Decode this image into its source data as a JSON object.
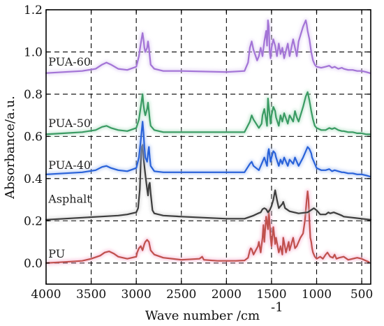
{
  "chart_data": {
    "type": "line",
    "xlabel": "Wave number /cm",
    "xlabel_superscript": "-1",
    "ylabel": "Absorbance/a.u.",
    "xlim": [
      4000,
      400
    ],
    "ylim": [
      -0.1,
      1.2
    ],
    "x_ticks": [
      4000,
      3500,
      3000,
      2500,
      2000,
      1500,
      1000,
      500
    ],
    "x_tick_labels": [
      "4000",
      "3500",
      "3000",
      "2500",
      "2000",
      "1500",
      "1000",
      "500"
    ],
    "y_ticks": [
      0.0,
      0.2,
      0.4,
      0.6,
      0.8,
      1.0,
      1.2
    ],
    "y_tick_labels": [
      "0.0",
      "0.2",
      "0.4",
      "0.6",
      "0.8",
      "1.0",
      "1.2"
    ],
    "grid": "dashed",
    "series": [
      {
        "name": "PU",
        "color": "#c0504d",
        "glow": "#f4a6c8",
        "label_at": {
          "x": 3990,
          "y": 0.025
        },
        "x": [
          4000,
          3800,
          3600,
          3500,
          3400,
          3350,
          3300,
          3250,
          3200,
          3100,
          3000,
          2990,
          2970,
          2950,
          2930,
          2910,
          2900,
          2880,
          2860,
          2840,
          2800,
          2700,
          2500,
          2300,
          2270,
          2250,
          2100,
          2000,
          1900,
          1800,
          1760,
          1740,
          1730,
          1720,
          1700,
          1650,
          1640,
          1620,
          1600,
          1590,
          1580,
          1560,
          1540,
          1530,
          1510,
          1500,
          1480,
          1460,
          1450,
          1420,
          1400,
          1380,
          1370,
          1340,
          1310,
          1300,
          1260,
          1240,
          1220,
          1200,
          1180,
          1150,
          1130,
          1110,
          1100,
          1090,
          1080,
          1070,
          1060,
          1050,
          1040,
          1020,
          1000,
          960,
          930,
          900,
          880,
          850,
          820,
          800,
          780,
          750,
          700,
          650,
          600,
          550,
          500,
          450,
          420
        ],
        "y": [
          0.0,
          0.005,
          0.01,
          0.02,
          0.035,
          0.05,
          0.055,
          0.045,
          0.03,
          0.02,
          0.03,
          0.05,
          0.07,
          0.08,
          0.06,
          0.09,
          0.1,
          0.11,
          0.1,
          0.06,
          0.04,
          0.025,
          0.015,
          0.02,
          0.03,
          0.015,
          0.01,
          0.01,
          0.01,
          0.012,
          0.025,
          0.06,
          0.07,
          0.065,
          0.04,
          0.08,
          0.1,
          0.05,
          0.12,
          0.18,
          0.1,
          0.22,
          0.16,
          0.25,
          0.12,
          0.08,
          0.17,
          0.09,
          0.12,
          0.05,
          0.08,
          0.04,
          0.12,
          0.05,
          0.1,
          0.06,
          0.12,
          0.07,
          0.08,
          0.1,
          0.12,
          0.14,
          0.2,
          0.3,
          0.34,
          0.3,
          0.2,
          0.12,
          0.1,
          0.07,
          0.05,
          0.03,
          0.02,
          0.03,
          0.02,
          0.04,
          0.05,
          0.03,
          0.025,
          0.04,
          0.02,
          0.025,
          0.03,
          0.015,
          0.02,
          0.025,
          0.02,
          0.01,
          0.005
        ]
      },
      {
        "name": "Asphalt",
        "color": "#3d3d3d",
        "glow": "#c8c8c8",
        "label_at": {
          "x": 3990,
          "y": 0.285
        },
        "x": [
          4000,
          3800,
          3600,
          3400,
          3200,
          3100,
          3050,
          3000,
          2980,
          2960,
          2950,
          2940,
          2930,
          2920,
          2900,
          2880,
          2870,
          2860,
          2850,
          2840,
          2820,
          2800,
          2700,
          2500,
          2000,
          1800,
          1700,
          1650,
          1620,
          1600,
          1580,
          1560,
          1540,
          1520,
          1500,
          1480,
          1460,
          1440,
          1420,
          1400,
          1380,
          1370,
          1350,
          1300,
          1250,
          1200,
          1100,
          1030,
          1000,
          960,
          900,
          870,
          850,
          810,
          780,
          750,
          720,
          700,
          600,
          500,
          400
        ],
        "y": [
          0.205,
          0.21,
          0.215,
          0.22,
          0.225,
          0.23,
          0.235,
          0.24,
          0.26,
          0.35,
          0.48,
          0.55,
          0.56,
          0.5,
          0.42,
          0.35,
          0.32,
          0.37,
          0.38,
          0.33,
          0.25,
          0.235,
          0.225,
          0.22,
          0.21,
          0.21,
          0.225,
          0.235,
          0.24,
          0.255,
          0.26,
          0.255,
          0.24,
          0.25,
          0.27,
          0.3,
          0.345,
          0.3,
          0.26,
          0.27,
          0.28,
          0.29,
          0.26,
          0.245,
          0.24,
          0.235,
          0.24,
          0.26,
          0.25,
          0.23,
          0.23,
          0.24,
          0.235,
          0.24,
          0.235,
          0.23,
          0.225,
          0.22,
          0.215,
          0.21,
          0.205
        ]
      },
      {
        "name": "PUA-40",
        "color": "#2962d9",
        "glow": "#9cb8f0",
        "label_at": {
          "x": 3990,
          "y": 0.445
        },
        "x": [
          4000,
          3800,
          3600,
          3450,
          3380,
          3330,
          3280,
          3200,
          3100,
          3000,
          2970,
          2950,
          2930,
          2920,
          2910,
          2900,
          2880,
          2870,
          2860,
          2850,
          2840,
          2800,
          2700,
          2500,
          2000,
          1800,
          1740,
          1720,
          1700,
          1640,
          1600,
          1580,
          1550,
          1540,
          1530,
          1510,
          1500,
          1480,
          1460,
          1450,
          1420,
          1400,
          1380,
          1360,
          1320,
          1300,
          1260,
          1240,
          1220,
          1200,
          1150,
          1120,
          1100,
          1080,
          1060,
          1050,
          1020,
          1000,
          950,
          900,
          860,
          830,
          800,
          760,
          720,
          700,
          650,
          600,
          550,
          500,
          450,
          410
        ],
        "y": [
          0.42,
          0.425,
          0.43,
          0.44,
          0.455,
          0.46,
          0.45,
          0.44,
          0.435,
          0.45,
          0.5,
          0.58,
          0.67,
          0.62,
          0.55,
          0.5,
          0.48,
          0.52,
          0.55,
          0.5,
          0.46,
          0.435,
          0.43,
          0.43,
          0.43,
          0.43,
          0.47,
          0.48,
          0.46,
          0.44,
          0.48,
          0.5,
          0.46,
          0.52,
          0.54,
          0.48,
          0.5,
          0.53,
          0.52,
          0.5,
          0.46,
          0.49,
          0.47,
          0.5,
          0.46,
          0.49,
          0.47,
          0.5,
          0.48,
          0.46,
          0.5,
          0.53,
          0.55,
          0.54,
          0.52,
          0.5,
          0.47,
          0.45,
          0.44,
          0.44,
          0.445,
          0.435,
          0.44,
          0.435,
          0.43,
          0.43,
          0.425,
          0.425,
          0.42,
          0.42,
          0.415,
          0.41
        ]
      },
      {
        "name": "PUA-50",
        "color": "#3a9b63",
        "glow": "#a6dbbb",
        "label_at": {
          "x": 3990,
          "y": 0.645
        },
        "x": [
          4000,
          3800,
          3600,
          3450,
          3380,
          3330,
          3280,
          3200,
          3100,
          3000,
          2970,
          2950,
          2930,
          2920,
          2910,
          2900,
          2880,
          2870,
          2860,
          2850,
          2840,
          2800,
          2700,
          2500,
          2000,
          1800,
          1740,
          1720,
          1700,
          1640,
          1610,
          1600,
          1580,
          1550,
          1540,
          1530,
          1510,
          1500,
          1480,
          1460,
          1450,
          1420,
          1400,
          1380,
          1360,
          1320,
          1300,
          1260,
          1240,
          1220,
          1200,
          1150,
          1120,
          1100,
          1080,
          1060,
          1040,
          1020,
          1000,
          950,
          900,
          860,
          830,
          800,
          760,
          720,
          700,
          650,
          600,
          550,
          500,
          450,
          410
        ],
        "y": [
          0.61,
          0.615,
          0.62,
          0.63,
          0.645,
          0.65,
          0.64,
          0.63,
          0.625,
          0.64,
          0.68,
          0.74,
          0.8,
          0.75,
          0.72,
          0.7,
          0.73,
          0.76,
          0.72,
          0.68,
          0.65,
          0.63,
          0.62,
          0.62,
          0.62,
          0.62,
          0.67,
          0.7,
          0.68,
          0.64,
          0.66,
          0.7,
          0.73,
          0.65,
          0.78,
          0.74,
          0.66,
          0.7,
          0.74,
          0.72,
          0.69,
          0.65,
          0.7,
          0.67,
          0.71,
          0.66,
          0.7,
          0.67,
          0.72,
          0.69,
          0.67,
          0.74,
          0.79,
          0.81,
          0.77,
          0.72,
          0.68,
          0.65,
          0.64,
          0.63,
          0.63,
          0.64,
          0.635,
          0.64,
          0.63,
          0.625,
          0.625,
          0.62,
          0.62,
          0.615,
          0.615,
          0.61,
          0.61
        ]
      },
      {
        "name": "PUA-60",
        "color": "#a374d6",
        "glow": "#d7c2f0",
        "label_at": {
          "x": 3990,
          "y": 0.935
        },
        "x": [
          4000,
          3800,
          3600,
          3450,
          3380,
          3330,
          3280,
          3200,
          3100,
          3000,
          2970,
          2950,
          2930,
          2920,
          2910,
          2900,
          2880,
          2870,
          2860,
          2850,
          2840,
          2800,
          2700,
          2500,
          2000,
          1800,
          1760,
          1740,
          1720,
          1700,
          1660,
          1640,
          1620,
          1600,
          1580,
          1560,
          1550,
          1540,
          1530,
          1520,
          1510,
          1500,
          1480,
          1460,
          1440,
          1420,
          1400,
          1380,
          1360,
          1320,
          1300,
          1260,
          1240,
          1220,
          1200,
          1150,
          1120,
          1110,
          1100,
          1080,
          1060,
          1040,
          1020,
          1000,
          950,
          900,
          860,
          830,
          800,
          760,
          720,
          700,
          650,
          600,
          550,
          500,
          450,
          410
        ],
        "y": [
          0.9,
          0.905,
          0.91,
          0.92,
          0.94,
          0.95,
          0.94,
          0.92,
          0.915,
          0.93,
          0.98,
          1.04,
          1.09,
          1.06,
          1.02,
          1.0,
          1.02,
          1.05,
          1.02,
          0.98,
          0.94,
          0.92,
          0.91,
          0.91,
          0.905,
          0.91,
          0.95,
          1.02,
          1.05,
          1.01,
          0.96,
          0.98,
          1.02,
          0.98,
          1.05,
          1.1,
          1.03,
          1.15,
          1.12,
          1.0,
          0.97,
          1.02,
          1.06,
          1.03,
          0.98,
          1.04,
          0.99,
          1.02,
          0.97,
          1.04,
          0.98,
          1.06,
          1.02,
          0.98,
          1.05,
          1.12,
          1.15,
          1.13,
          1.1,
          1.06,
          1.0,
          0.96,
          0.94,
          0.93,
          0.925,
          0.93,
          0.935,
          0.925,
          0.93,
          0.92,
          0.925,
          0.92,
          0.915,
          0.915,
          0.91,
          0.91,
          0.905,
          0.9
        ]
      }
    ]
  }
}
